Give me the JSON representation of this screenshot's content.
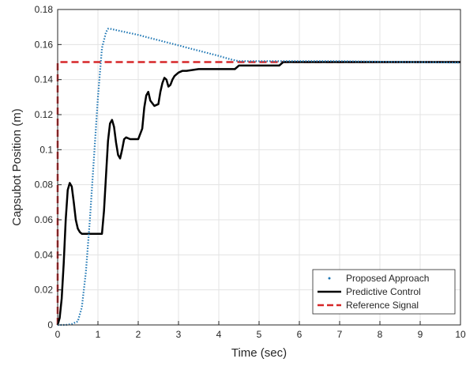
{
  "chart_data": {
    "type": "line",
    "xlabel": "Time (sec)",
    "ylabel": "Capsubot Position (m)",
    "xlim": [
      0,
      10
    ],
    "ylim": [
      0,
      0.18
    ],
    "x_ticks": [
      "0",
      "1",
      "2",
      "3",
      "4",
      "5",
      "6",
      "7",
      "8",
      "9",
      "10"
    ],
    "y_ticks": [
      "0",
      "0.02",
      "0.04",
      "0.06",
      "0.08",
      "0.1",
      "0.12",
      "0.14",
      "0.16",
      "0.18"
    ],
    "grid": true,
    "legend_position": "bottom-right",
    "series": [
      {
        "name": "Proposed Approach",
        "color": "#1f77b4",
        "style": "dotted",
        "x": [
          0,
          0.2,
          0.35,
          0.5,
          0.6,
          0.7,
          0.8,
          0.9,
          1.0,
          1.1,
          1.2,
          1.25,
          1.3,
          1.5,
          2.0,
          2.5,
          3.0,
          3.5,
          4.0,
          4.3,
          4.5,
          4.7,
          5.0,
          6.0,
          7.0,
          8.0,
          9.0,
          10.0
        ],
        "y": [
          0,
          0,
          0.0005,
          0.002,
          0.01,
          0.03,
          0.06,
          0.095,
          0.13,
          0.158,
          0.167,
          0.169,
          0.169,
          0.168,
          0.1655,
          0.1625,
          0.1595,
          0.1565,
          0.1535,
          0.1515,
          0.1505,
          0.1505,
          0.1505,
          0.1505,
          0.1505,
          0.1502,
          0.15,
          0.1497
        ]
      },
      {
        "name": "Predictive Control",
        "color": "#000000",
        "style": "solid",
        "x": [
          0,
          0.05,
          0.1,
          0.15,
          0.2,
          0.25,
          0.3,
          0.35,
          0.4,
          0.45,
          0.5,
          0.55,
          0.6,
          0.7,
          0.8,
          1.0,
          1.1,
          1.15,
          1.2,
          1.25,
          1.3,
          1.35,
          1.4,
          1.45,
          1.5,
          1.55,
          1.6,
          1.65,
          1.7,
          1.8,
          1.9,
          2.0,
          2.1,
          2.15,
          2.2,
          2.25,
          2.3,
          2.4,
          2.5,
          2.55,
          2.6,
          2.65,
          2.7,
          2.75,
          2.8,
          2.85,
          2.9,
          3.0,
          3.1,
          3.2,
          3.5,
          4.0,
          4.4,
          4.5,
          5.0,
          5.5,
          5.6,
          6.0,
          7.0,
          8.0,
          9.0,
          10.0
        ],
        "y": [
          0,
          0.004,
          0.015,
          0.035,
          0.06,
          0.077,
          0.081,
          0.079,
          0.07,
          0.06,
          0.055,
          0.053,
          0.052,
          0.052,
          0.052,
          0.052,
          0.052,
          0.065,
          0.085,
          0.105,
          0.115,
          0.117,
          0.113,
          0.104,
          0.097,
          0.095,
          0.1,
          0.106,
          0.107,
          0.106,
          0.106,
          0.106,
          0.112,
          0.124,
          0.131,
          0.133,
          0.128,
          0.125,
          0.126,
          0.133,
          0.138,
          0.141,
          0.14,
          0.136,
          0.137,
          0.14,
          0.142,
          0.144,
          0.145,
          0.145,
          0.146,
          0.146,
          0.146,
          0.148,
          0.148,
          0.148,
          0.15,
          0.15,
          0.15,
          0.15,
          0.15,
          0.15
        ]
      },
      {
        "name": "Reference Signal",
        "color": "#d62728",
        "style": "dashed",
        "x": [
          0,
          0,
          10
        ],
        "y": [
          0,
          0.15,
          0.15
        ]
      }
    ]
  }
}
